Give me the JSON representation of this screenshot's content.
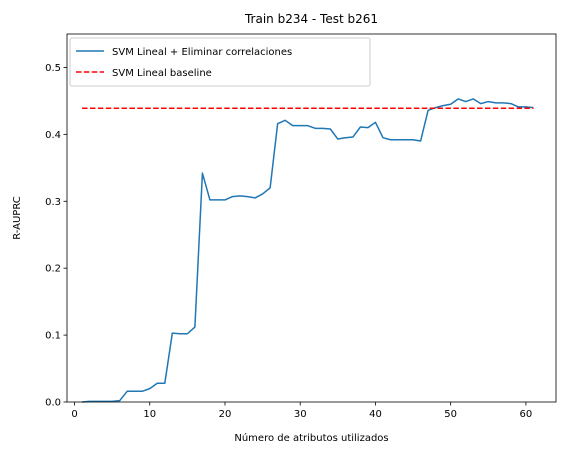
{
  "chart_data": {
    "type": "line",
    "title": "Train b234 - Test b261",
    "xlabel": "Número de atributos utilizados",
    "ylabel": "R-AUPRC",
    "xlim": [
      -1,
      64
    ],
    "ylim": [
      0,
      0.55
    ],
    "xticks": [
      0,
      10,
      20,
      30,
      40,
      50,
      60
    ],
    "yticks": [
      0.0,
      0.1,
      0.2,
      0.3,
      0.4,
      0.5
    ],
    "xtick_labels": [
      "0",
      "10",
      "20",
      "30",
      "40",
      "50",
      "60"
    ],
    "ytick_labels": [
      "0.0",
      "0.1",
      "0.2",
      "0.3",
      "0.4",
      "0.5"
    ],
    "grid": false,
    "legend_position": "top-left",
    "series": [
      {
        "name": "SVM Lineal + Eliminar correlaciones",
        "color": "#1f77b4",
        "style": "solid",
        "x": [
          1,
          2,
          3,
          4,
          5,
          6,
          7,
          8,
          9,
          10,
          11,
          12,
          13,
          14,
          15,
          16,
          17,
          18,
          19,
          20,
          21,
          22,
          23,
          24,
          25,
          26,
          27,
          28,
          29,
          30,
          31,
          32,
          33,
          34,
          35,
          36,
          37,
          38,
          39,
          40,
          41,
          42,
          43,
          44,
          45,
          46,
          47,
          48,
          49,
          50,
          51,
          52,
          53,
          54,
          55,
          56,
          57,
          58,
          59,
          60,
          61
        ],
        "y": [
          0.0,
          0.001,
          0.001,
          0.001,
          0.001,
          0.002,
          0.016,
          0.016,
          0.016,
          0.02,
          0.028,
          0.028,
          0.103,
          0.102,
          0.102,
          0.112,
          0.342,
          0.302,
          0.302,
          0.302,
          0.307,
          0.308,
          0.307,
          0.305,
          0.311,
          0.32,
          0.416,
          0.421,
          0.413,
          0.413,
          0.413,
          0.409,
          0.409,
          0.408,
          0.393,
          0.395,
          0.396,
          0.411,
          0.41,
          0.418,
          0.395,
          0.392,
          0.392,
          0.392,
          0.392,
          0.39,
          0.436,
          0.44,
          0.443,
          0.445,
          0.453,
          0.449,
          0.453,
          0.446,
          0.449,
          0.447,
          0.447,
          0.446,
          0.441,
          0.441,
          0.44
        ]
      },
      {
        "name": "SVM Lineal  baseline",
        "color": "#ff0000",
        "style": "dashed",
        "x": [
          1,
          61
        ],
        "y": [
          0.439,
          0.439
        ]
      }
    ]
  }
}
